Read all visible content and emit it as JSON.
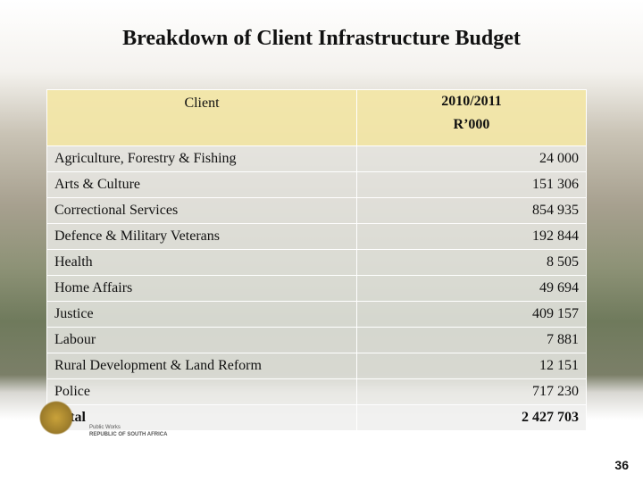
{
  "header": {
    "title": "Breakdown of Client Infrastructure Budget"
  },
  "table": {
    "columns": [
      {
        "label": "Client"
      },
      {
        "label": "2010/2011",
        "unit": "R’000"
      }
    ],
    "rows": [
      [
        "Agriculture, Forestry & Fishing",
        "24 000"
      ],
      [
        "Arts & Culture",
        "151 306"
      ],
      [
        "Correctional Services",
        "854 935"
      ],
      [
        "Defence & Military Veterans",
        "192 844"
      ],
      [
        "Health",
        "8 505"
      ],
      [
        "Home Affairs",
        "49 694"
      ],
      [
        "Justice",
        "409 157"
      ],
      [
        "Labour",
        "7 881"
      ],
      [
        "Rural Development & Land Reform",
        "12 151"
      ],
      [
        "Police",
        "717 230"
      ]
    ],
    "total": [
      "Total",
      "2 427 703"
    ]
  },
  "footer": {
    "logo_line1": "Public Works",
    "logo_line2": "REPUBLIC OF SOUTH AFRICA",
    "page_number": "36"
  }
}
